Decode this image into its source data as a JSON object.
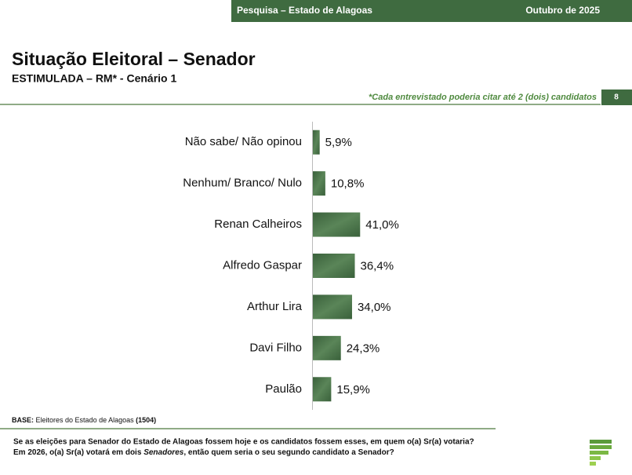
{
  "header": {
    "survey": "Pesquisa – Estado de Alagoas",
    "date": "Outubro de 2025"
  },
  "title": "Situação Eleitoral – Senador",
  "subtitle": "ESTIMULADA – RM* - Cenário 1",
  "note": "*Cada entrevistado poderia citar até 2 (dois) candidatos",
  "page_number": "8",
  "chart_data": {
    "type": "bar",
    "orientation": "horizontal",
    "categories": [
      "Não sabe/ Não opinou",
      "Nenhum/ Branco/ Nulo",
      "Renan Calheiros",
      "Alfredo Gaspar",
      "Arthur Lira",
      "Davi Filho",
      "Paulão"
    ],
    "values": [
      5.9,
      10.8,
      41.0,
      36.4,
      34.0,
      24.3,
      15.9
    ],
    "value_labels": [
      "5,9%",
      "10,8%",
      "41,0%",
      "36,4%",
      "34,0%",
      "24,3%",
      "15,9%"
    ],
    "color": "#456f45",
    "xlim": [
      0,
      100
    ]
  },
  "base": {
    "label": "BASE:",
    "text": "Eleitores do Estado de Alagoas",
    "n": "(1504)"
  },
  "question": {
    "line1": "Se as eleições para Senador do Estado de Alagoas fossem hoje e os candidatos fossem esses, em quem o(a) Sr(a) votaria?",
    "line2a": "Em 2026, o(a) Sr(a) votará em dois",
    "line2b": "Senadores",
    "line2c": ", então quem seria o seu segundo candidato a Senador?"
  }
}
